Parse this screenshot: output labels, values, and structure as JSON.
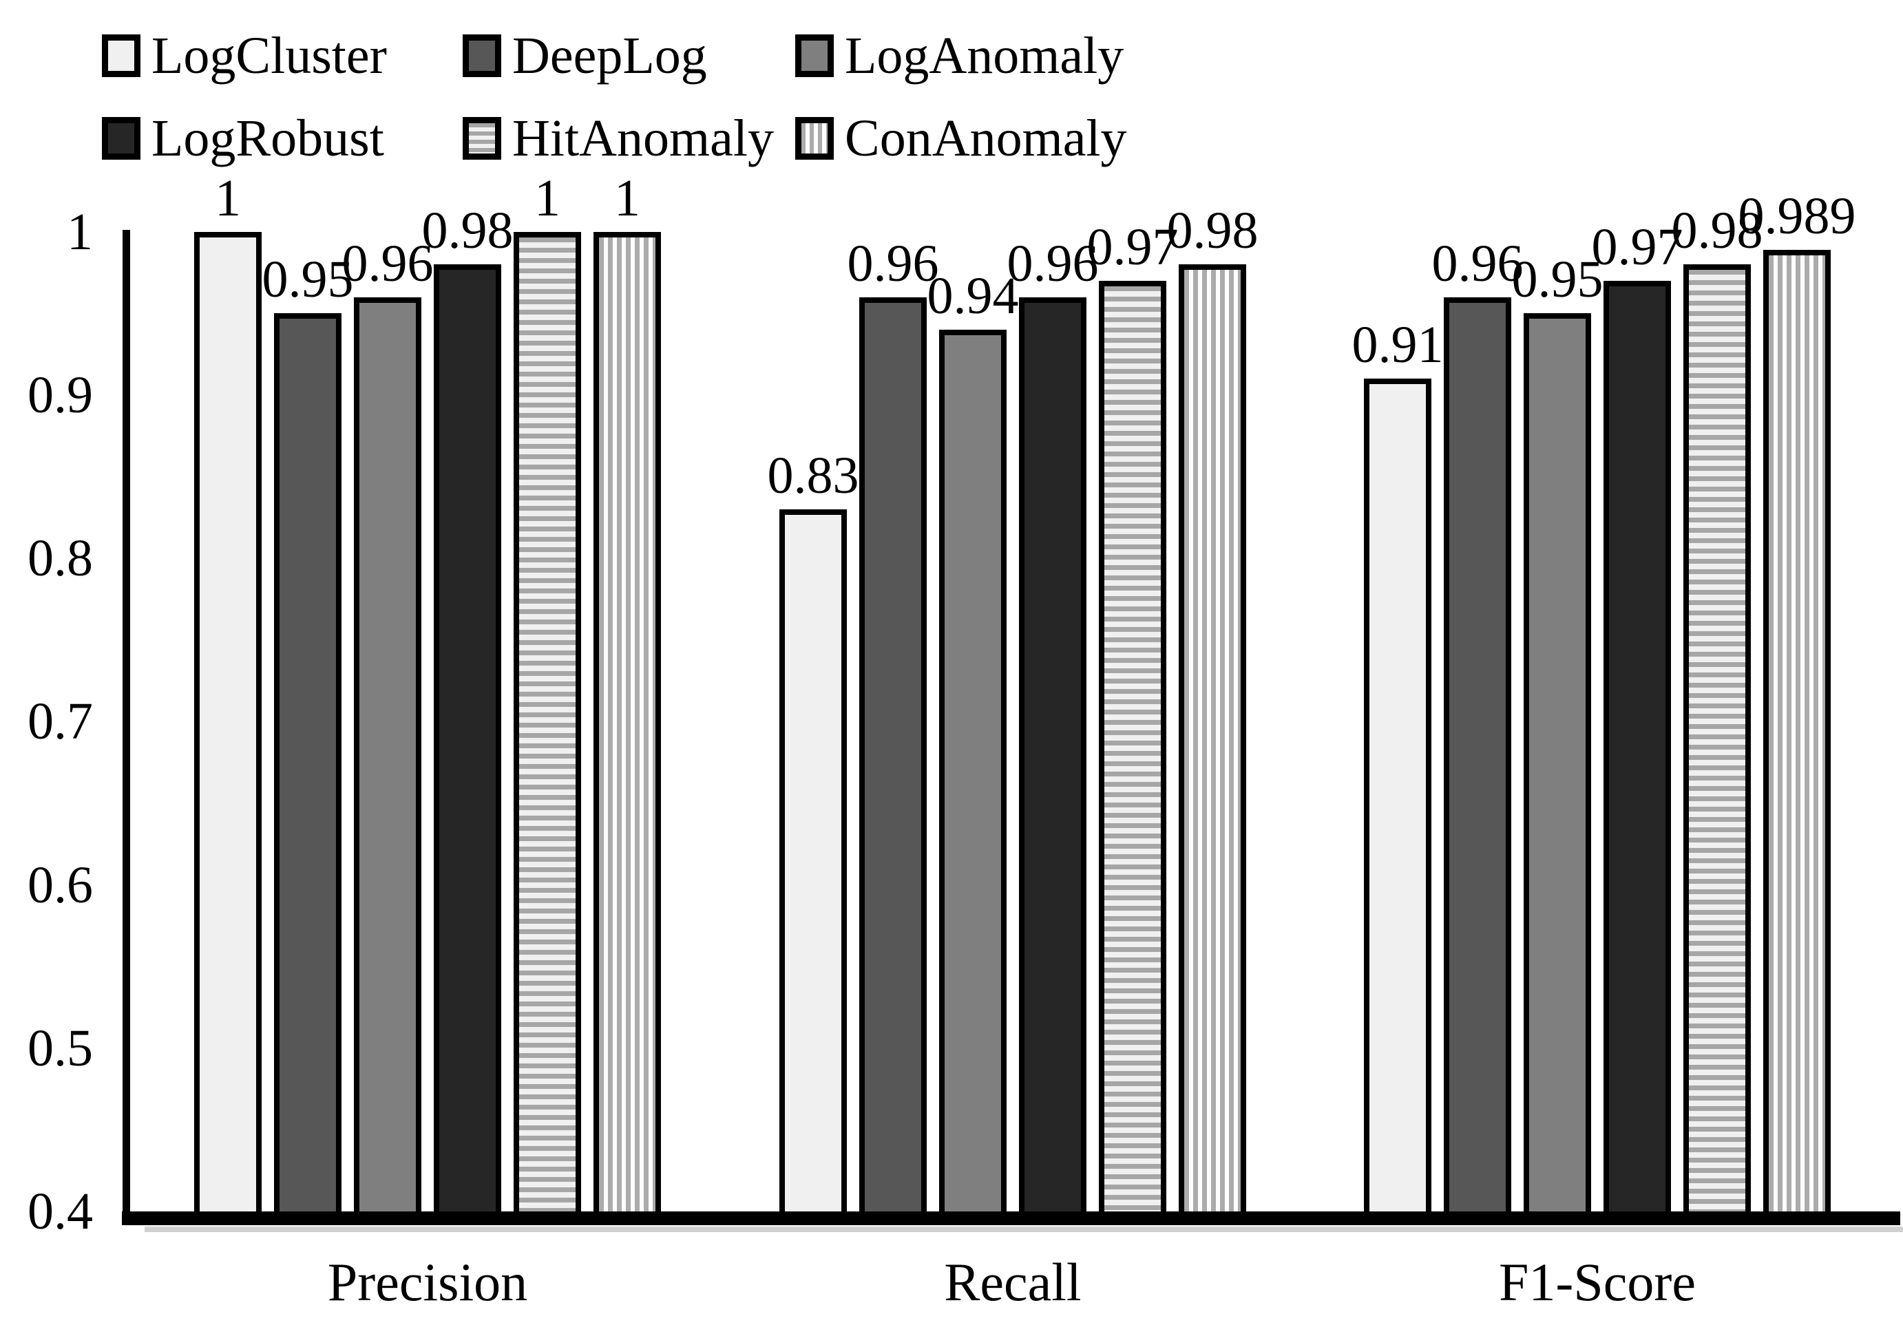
{
  "chart_data": {
    "type": "bar",
    "title": "",
    "xlabel": "",
    "ylabel": "",
    "categories": [
      "Precision",
      "Recall",
      "F1-Score"
    ],
    "series": [
      {
        "name": "LogCluster",
        "pattern": "solid",
        "fill": "#f0f0f0",
        "stripe": null,
        "values": [
          1,
          0.83,
          0.91
        ],
        "labels": [
          "1",
          "0.83",
          "0.91"
        ]
      },
      {
        "name": "DeepLog",
        "pattern": "solid",
        "fill": "#575757",
        "stripe": null,
        "values": [
          0.95,
          0.96,
          0.96
        ],
        "labels": [
          "0.95",
          "0.96",
          "0.96"
        ]
      },
      {
        "name": "LogAnomaly",
        "pattern": "solid",
        "fill": "#7f7f7f",
        "stripe": null,
        "values": [
          0.96,
          0.94,
          0.95
        ],
        "labels": [
          "0.96",
          "0.94",
          "0.95"
        ]
      },
      {
        "name": "LogRobust",
        "pattern": "solid",
        "fill": "#262626",
        "stripe": null,
        "values": [
          0.98,
          0.96,
          0.97
        ],
        "labels": [
          "0.98",
          "0.96",
          "0.97"
        ]
      },
      {
        "name": "HitAnomaly",
        "pattern": "hstripe",
        "fill": "#f0f0f0",
        "stripe": "#a6a6a6",
        "values": [
          1,
          0.97,
          0.98
        ],
        "labels": [
          "1",
          "0.97",
          "0.98"
        ]
      },
      {
        "name": "ConAnomaly",
        "pattern": "vstripe",
        "fill": "#fdfdfd",
        "stripe": "#ababab",
        "values": [
          1,
          0.98,
          0.989
        ],
        "labels": [
          "1",
          "0.98",
          "0.989"
        ]
      }
    ],
    "ylim": [
      0.4,
      1.0
    ],
    "yticks": [
      {
        "value": 1.0,
        "label": "1"
      },
      {
        "value": 0.9,
        "label": "0.9"
      },
      {
        "value": 0.8,
        "label": "0.8"
      },
      {
        "value": 0.7,
        "label": "0.7"
      },
      {
        "value": 0.6,
        "label": "0.6"
      },
      {
        "value": 0.5,
        "label": "0.5"
      },
      {
        "value": 0.4,
        "label": "0.4"
      }
    ],
    "grid": false,
    "legend_position": "top-left",
    "colors": {
      "bar_border": "#000000",
      "axis": "#000000",
      "text": "#000000",
      "background": "#ffffff"
    }
  }
}
